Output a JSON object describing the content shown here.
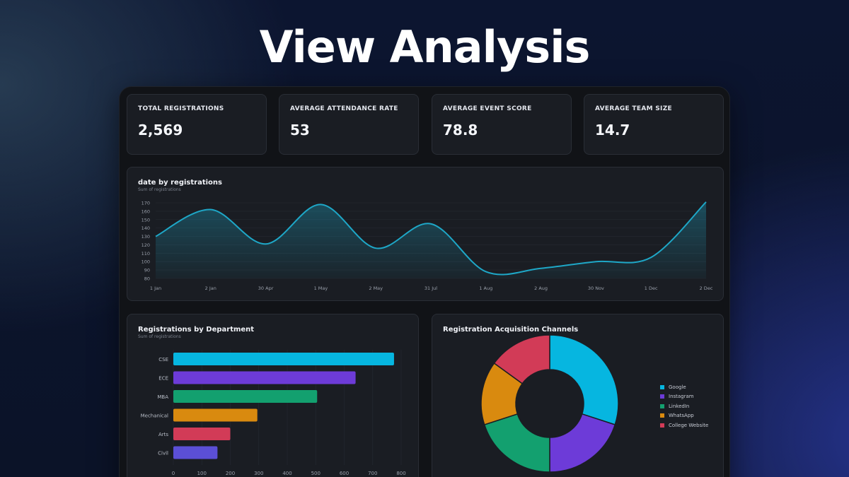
{
  "page": {
    "title": "View Analysis"
  },
  "kpis": [
    {
      "label": "TOTAL REGISTRATIONS",
      "value": "2,569"
    },
    {
      "label": "AVERAGE ATTENDANCE RATE",
      "value": "53"
    },
    {
      "label": "AVERAGE EVENT SCORE",
      "value": "78.8"
    },
    {
      "label": "AVERAGE TEAM SIZE",
      "value": "14.7"
    }
  ],
  "line_card": {
    "title": "date by registrations",
    "subtitle": "Sum of registrations"
  },
  "bar_card": {
    "title": "Registrations by Department",
    "subtitle": "Sum of registrations"
  },
  "donut_card": {
    "title": "Registration Acquisition Channels"
  },
  "colors": {
    "line": "#1ea7c7",
    "google": "#06b6e0",
    "instagram": "#6d3bd8",
    "linkedin": "#13a06f",
    "whatsapp": "#d98a0f",
    "college_website": "#d23b57",
    "civil": "#5b4fd6"
  },
  "chart_data": [
    {
      "type": "area",
      "title": "date by registrations",
      "subtitle": "Sum of registrations",
      "x": [
        "1 Jan",
        "2 Jan",
        "30 Apr",
        "1 May",
        "2 May",
        "31 Jul",
        "1 Aug",
        "2 Aug",
        "30 Nov",
        "1 Dec",
        "2 Dec"
      ],
      "values": [
        130,
        162,
        121,
        168,
        116,
        145,
        88,
        92,
        100,
        105,
        171
      ],
      "yticks": [
        80,
        90,
        100,
        110,
        120,
        130,
        140,
        150,
        160,
        170
      ],
      "ylim": [
        80,
        170
      ],
      "grid": true
    },
    {
      "type": "bar",
      "orientation": "horizontal",
      "title": "Registrations by Department",
      "subtitle": "Sum of registrations",
      "categories": [
        "CSE",
        "ECE",
        "MBA",
        "Mechanical",
        "Arts",
        "Civil"
      ],
      "values": [
        775,
        640,
        505,
        295,
        200,
        155
      ],
      "xticks": [
        0,
        100,
        200,
        300,
        400,
        500,
        600,
        700,
        800
      ],
      "xlim": [
        0,
        800
      ],
      "grid": true
    },
    {
      "type": "pie",
      "variant": "donut",
      "title": "Registration Acquisition Channels",
      "labels": [
        "Google",
        "Instagram",
        "LinkedIn",
        "WhatsApp",
        "College Website"
      ],
      "values": [
        30,
        20,
        20,
        15,
        15
      ],
      "legend_position": "right"
    }
  ]
}
